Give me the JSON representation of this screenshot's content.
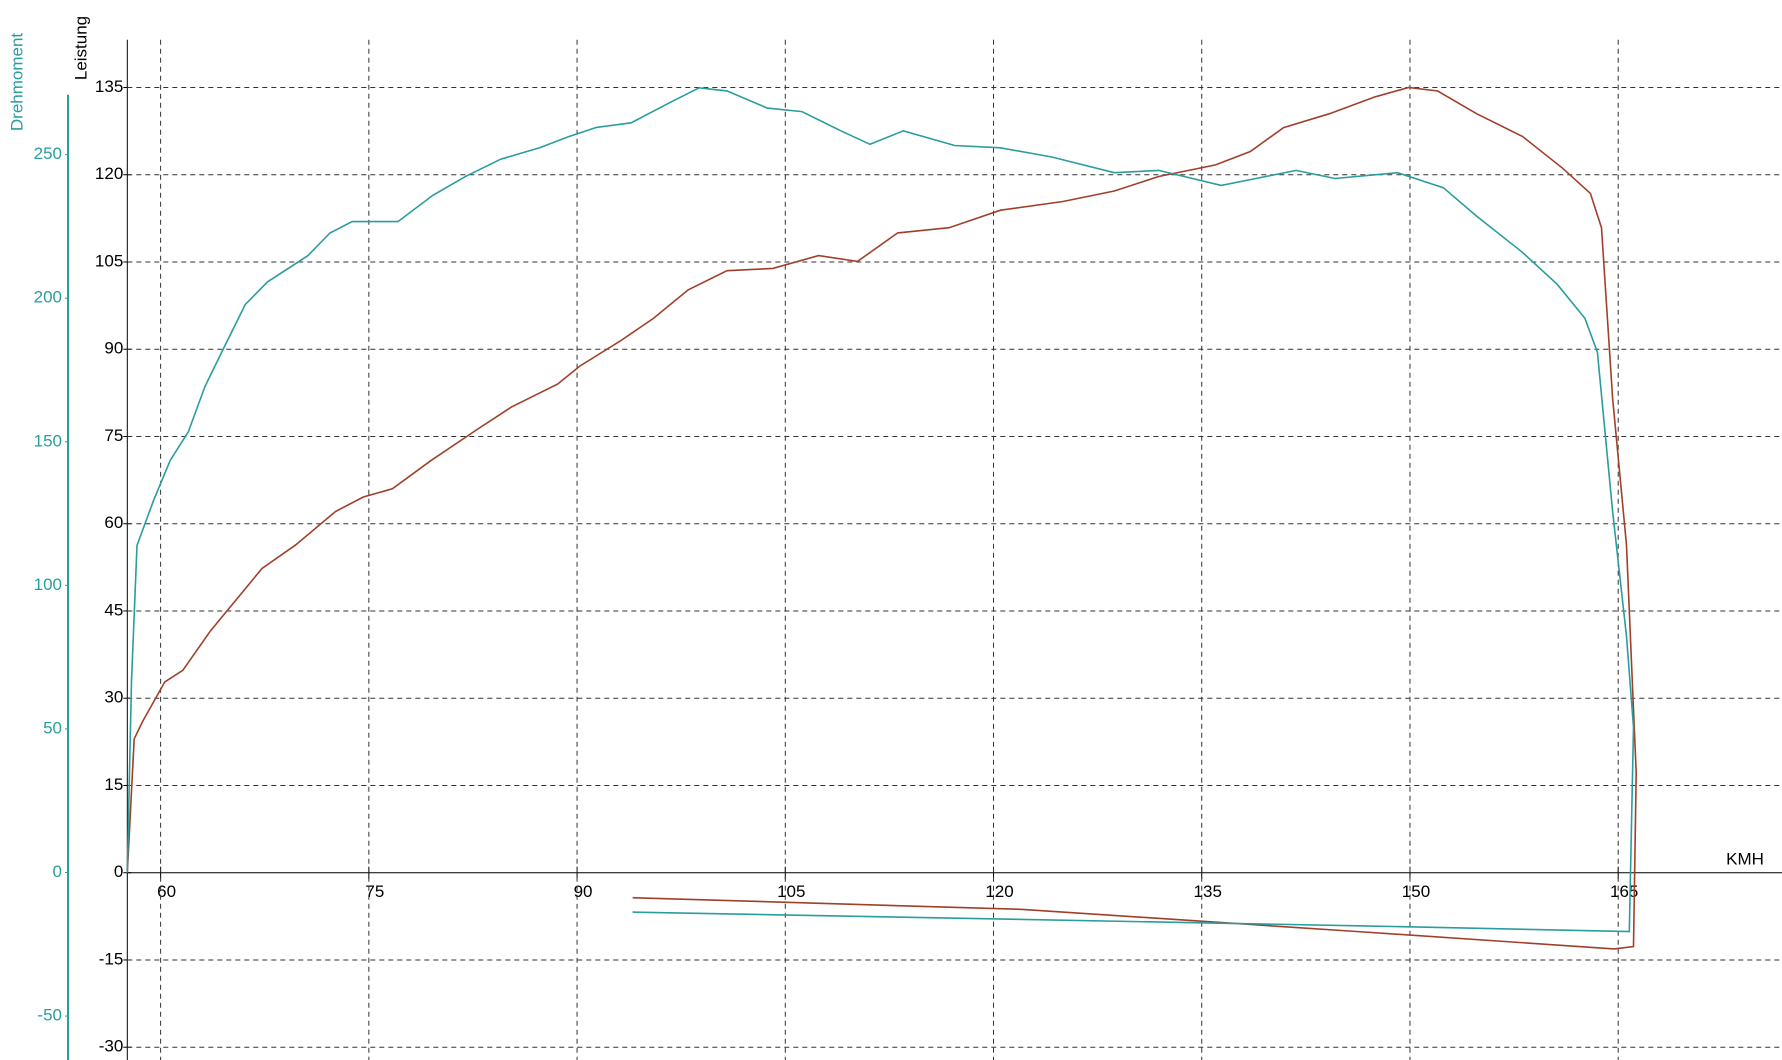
{
  "chart_data": {
    "type": "line",
    "x_label": "KMH",
    "y_label": "Leistung",
    "y2_label": "Drehmoment",
    "xlim": [
      57.6,
      176.8
    ],
    "xticks": [
      60,
      75,
      90,
      105,
      120,
      135,
      150,
      165
    ],
    "ylim": [
      -32.2,
      143.2
    ],
    "yticks": [
      -30,
      -15,
      0,
      15,
      30,
      45,
      60,
      75,
      90,
      105,
      120,
      135
    ],
    "y2lim": [
      -65.3,
      290.0
    ],
    "y2ticks": [
      -50,
      0,
      50,
      100,
      150,
      200,
      250
    ],
    "grid": true,
    "axis_color": "#000000",
    "y2_color": "#2a9d9d",
    "series": [
      {
        "name": "Leistung",
        "color": "#a0402a",
        "x": [
          57.6,
          58.1,
          58.7,
          60.3,
          61.6,
          63.6,
          67.3,
          69.7,
          72.6,
          74.6,
          76.7,
          79.5,
          82.8,
          85.3,
          88.6,
          90.2,
          93.1,
          95.5,
          98.0,
          100.8,
          104.1,
          107.4,
          110.2,
          113.1,
          116.8,
          120.5,
          125.0,
          128.7,
          131.9,
          136.0,
          138.5,
          140.9,
          144.2,
          147.5,
          149.9,
          152.0,
          154.8,
          158.1,
          161.0,
          163.0,
          163.8,
          164.6,
          165.6,
          166.3,
          166.1,
          164.7,
          146.7,
          122.1,
          94.0
        ],
        "values": [
          0,
          23.0,
          26.0,
          32.8,
          34.8,
          41.6,
          52.3,
          56.3,
          62.1,
          64.6,
          66.0,
          70.9,
          76.2,
          80.1,
          84.0,
          87.1,
          91.4,
          95.3,
          100.2,
          103.5,
          103.9,
          106.1,
          105.1,
          110.0,
          110.9,
          113.9,
          115.4,
          117.2,
          119.7,
          121.7,
          124.0,
          128.1,
          130.5,
          133.4,
          135.0,
          134.4,
          130.5,
          126.6,
          121.1,
          116.8,
          110.9,
          81.6,
          56.3,
          17.2,
          -12.7,
          -13.1,
          -10.2,
          -6.3,
          -4.3
        ]
      },
      {
        "name": "Drehmoment",
        "color": "#2a9d9d",
        "axis": "y2",
        "x": [
          57.6,
          57.9,
          58.3,
          59.5,
          60.7,
          62.0,
          63.2,
          64.8,
          66.1,
          67.7,
          70.6,
          72.2,
          73.8,
          77.1,
          79.6,
          82.0,
          84.5,
          87.3,
          89.4,
          91.4,
          93.9,
          96.7,
          98.8,
          100.8,
          103.7,
          106.2,
          109.0,
          111.1,
          113.5,
          117.2,
          120.5,
          124.2,
          128.7,
          131.9,
          136.4,
          138.5,
          141.8,
          144.6,
          149.1,
          152.4,
          154.8,
          158.1,
          160.6,
          162.6,
          163.5,
          164.6,
          165.6,
          166.1,
          165.8,
          146.7,
          94.0
        ],
        "values": [
          0,
          66.5,
          113.9,
          129.7,
          143.6,
          153.5,
          169.3,
          185.1,
          197.8,
          205.7,
          214.8,
          222.7,
          226.7,
          226.7,
          235.8,
          242.5,
          248.4,
          252.4,
          256.3,
          259.5,
          261.1,
          268.2,
          273.3,
          272.2,
          266.2,
          265.0,
          258.3,
          253.6,
          258.3,
          253.2,
          252.4,
          249.2,
          243.7,
          244.5,
          239.3,
          241.3,
          244.5,
          241.7,
          243.7,
          238.5,
          228.6,
          216.0,
          204.9,
          193.0,
          181.2,
          125.8,
          82.3,
          50.6,
          -20.6,
          -18.6,
          -13.8
        ]
      }
    ]
  }
}
